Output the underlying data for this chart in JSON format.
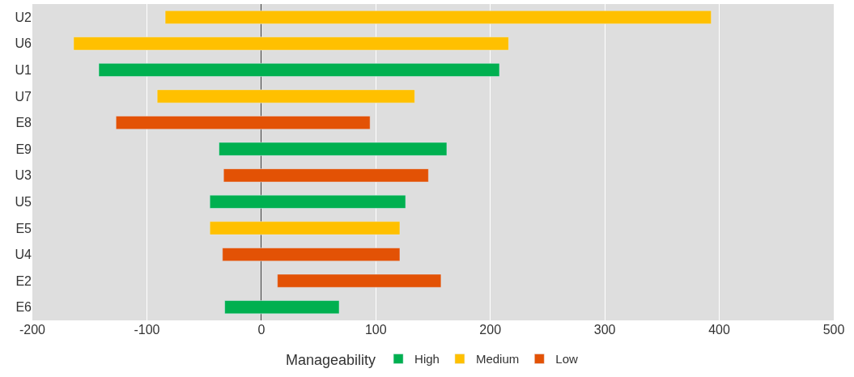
{
  "chart_data": {
    "type": "bar",
    "orientation": "horizontal",
    "categories": [
      "U2",
      "U6",
      "U1",
      "U7",
      "E8",
      "E9",
      "U3",
      "U5",
      "E5",
      "U4",
      "E2",
      "E6"
    ],
    "legend_title": "Manageability",
    "series": [
      {
        "name": "High",
        "color": "#00b050",
        "base": [
          null,
          null,
          -142,
          null,
          null,
          -37,
          null,
          -45,
          null,
          null,
          null,
          -32
        ],
        "values": [
          null,
          null,
          350,
          null,
          null,
          199,
          null,
          171,
          null,
          null,
          null,
          100
        ]
      },
      {
        "name": "Medium",
        "color": "#ffc000",
        "base": [
          -84,
          -164,
          null,
          -91,
          null,
          null,
          null,
          null,
          -45,
          null,
          null,
          null
        ],
        "values": [
          477,
          380,
          null,
          225,
          null,
          null,
          null,
          null,
          166,
          null,
          null,
          null
        ]
      },
      {
        "name": "Low",
        "color": "#e35205",
        "base": [
          null,
          null,
          null,
          null,
          -127,
          null,
          -33,
          null,
          null,
          -34,
          14,
          null
        ],
        "values": [
          null,
          null,
          null,
          null,
          222,
          null,
          179,
          null,
          null,
          155,
          143,
          null
        ]
      }
    ],
    "xlim": [
      -200,
      500
    ],
    "xticks": [
      -200,
      -100,
      0,
      100,
      200,
      300,
      400,
      500
    ],
    "grid": "x",
    "legend": "bottom"
  }
}
